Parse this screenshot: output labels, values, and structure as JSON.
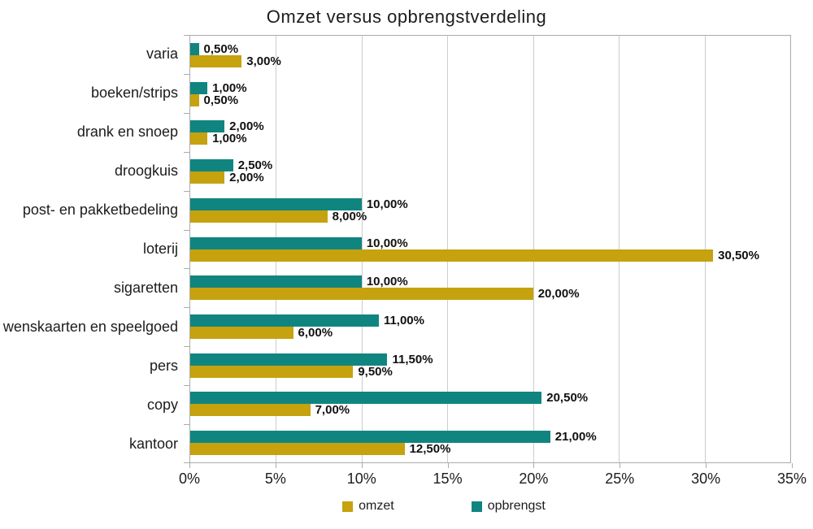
{
  "title": "Omzet versus opbrengstverdeling",
  "colors": {
    "omzet": "#C5A20E",
    "opbrengst": "#108580",
    "gridline": "#CCCCCC",
    "axis_border": "#ABABAB",
    "text": "#1C1C1C"
  },
  "x_axis": {
    "ticks": [
      "0%",
      "5%",
      "10%",
      "15%",
      "20%",
      "25%",
      "30%",
      "35%"
    ],
    "tick_values": [
      0,
      5,
      10,
      15,
      20,
      25,
      30,
      35
    ],
    "max": 35
  },
  "legend": {
    "items": [
      {
        "label": "omzet",
        "color": "#C5A20E"
      },
      {
        "label": "opbrengst",
        "color": "#108580"
      }
    ]
  },
  "chart_data": {
    "type": "bar",
    "orientation": "horizontal",
    "title": "Omzet versus opbrengstverdeling",
    "categories": [
      "varia",
      "boeken/strips",
      "drank en snoep",
      "droogkuis",
      "post- en pakketbedeling",
      "loterij",
      "sigaretten",
      "wenskaarten en speelgoed",
      "pers",
      "copy",
      "kantoor"
    ],
    "series": [
      {
        "name": "opbrengst",
        "color": "#108580",
        "values": [
          0.5,
          1.0,
          2.0,
          2.5,
          10.0,
          10.0,
          10.0,
          11.0,
          11.5,
          20.5,
          21.0
        ],
        "labels": [
          "0,50%",
          "1,00%",
          "2,00%",
          "2,50%",
          "10,00%",
          "10,00%",
          "10,00%",
          "11,00%",
          "11,50%",
          "20,50%",
          "21,00%"
        ]
      },
      {
        "name": "omzet",
        "color": "#C5A20E",
        "values": [
          3.0,
          0.5,
          1.0,
          2.0,
          8.0,
          30.5,
          20.0,
          6.0,
          9.5,
          7.0,
          12.5
        ],
        "labels": [
          "3,00%",
          "0,50%",
          "1,00%",
          "2,00%",
          "8,00%",
          "30,50%",
          "20,00%",
          "6,00%",
          "9,50%",
          "7,00%",
          "12,50%"
        ]
      }
    ],
    "xlim": [
      0,
      35
    ],
    "x_tick_labels": [
      "0%",
      "5%",
      "10%",
      "15%",
      "20%",
      "25%",
      "30%",
      "35%"
    ],
    "grid": "vertical",
    "legend_position": "bottom",
    "value_labels_shown": true,
    "decimal_separator": ","
  }
}
